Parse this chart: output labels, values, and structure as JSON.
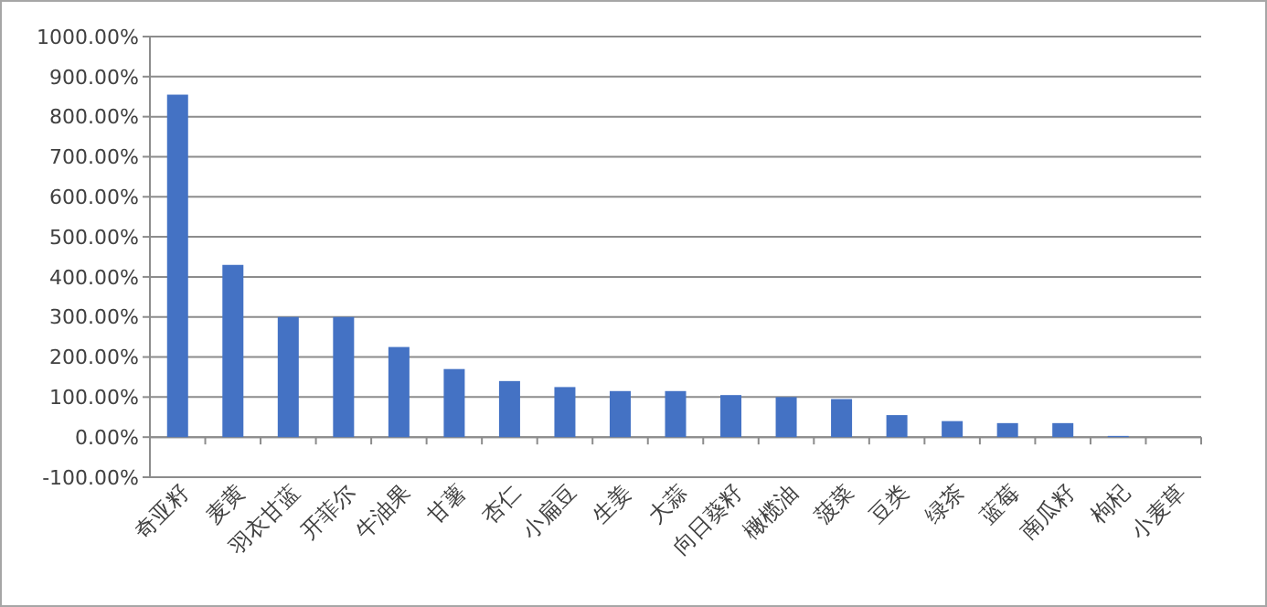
{
  "chart_data": {
    "type": "bar",
    "categories": [
      "奇亚籽",
      "麦黄",
      "羽衣甘蓝",
      "开菲尔",
      "牛油果",
      "甘薯",
      "杏仁",
      "小扁豆",
      "生姜",
      "大蒜",
      "向日葵籽",
      "橄榄油",
      "菠菜",
      "豆类",
      "绿茶",
      "蓝莓",
      "南瓜籽",
      "枸杞",
      "小麦草"
    ],
    "values": [
      855,
      430,
      300,
      300,
      225,
      170,
      140,
      125,
      115,
      115,
      105,
      100,
      95,
      55,
      40,
      35,
      35,
      3,
      0
    ],
    "color": "#4472c4",
    "ylim": [
      -100,
      1000
    ],
    "yticks": [
      {
        "value": -100,
        "label": "-100.00%"
      },
      {
        "value": 0,
        "label": "0.00%"
      },
      {
        "value": 100,
        "label": "100.00%"
      },
      {
        "value": 200,
        "label": "200.00%"
      },
      {
        "value": 300,
        "label": "300.00%"
      },
      {
        "value": 400,
        "label": "400.00%"
      },
      {
        "value": 500,
        "label": "500.00%"
      },
      {
        "value": 600,
        "label": "600.00%"
      },
      {
        "value": 700,
        "label": "700.00%"
      },
      {
        "value": 800,
        "label": "800.00%"
      },
      {
        "value": 900,
        "label": "900.00%"
      },
      {
        "value": 1000,
        "label": "1000.00%"
      }
    ],
    "grid": "y"
  }
}
